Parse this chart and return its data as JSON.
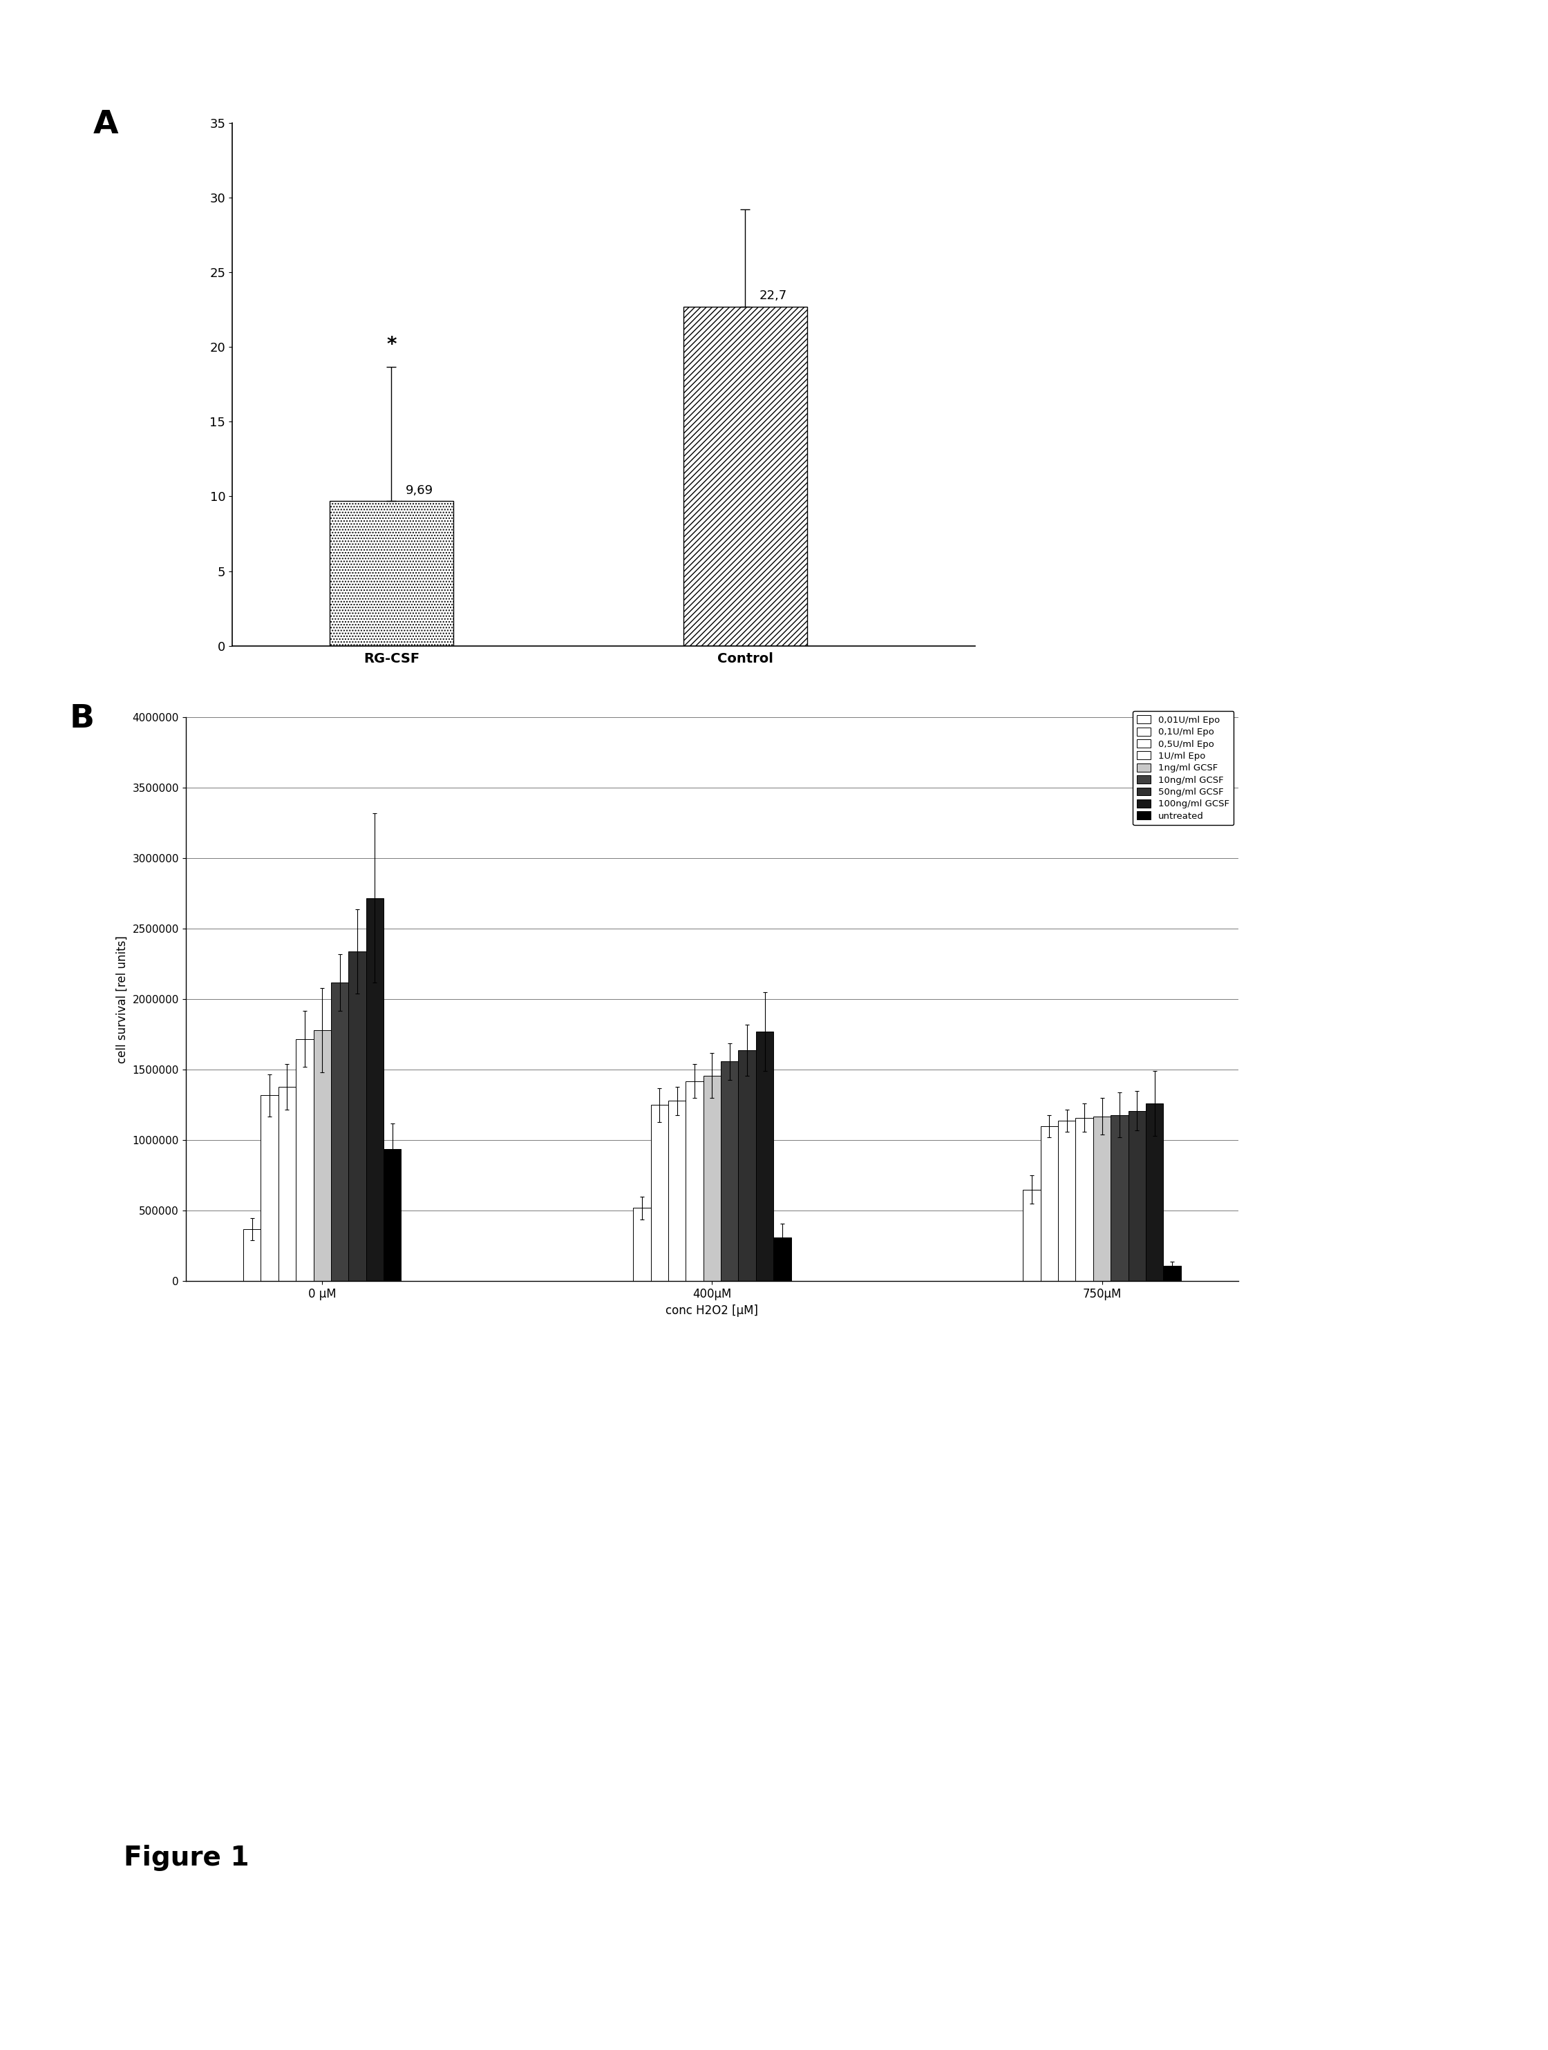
{
  "panel_a": {
    "categories": [
      "RG-CSF",
      "Control"
    ],
    "values": [
      9.69,
      22.7
    ],
    "errors_up": [
      9.0,
      6.5
    ],
    "errors_down": [
      0,
      0
    ],
    "hatches": [
      "....",
      "////"
    ],
    "ylim": [
      0,
      35
    ],
    "yticks": [
      0,
      5,
      10,
      15,
      20,
      25,
      30,
      35
    ],
    "value_labels": [
      "9,69",
      "22,7"
    ],
    "star_label": "*",
    "panel_label": "A",
    "bar_width": 0.35
  },
  "panel_b": {
    "x_labels_display": [
      "0 μM",
      "400μM",
      "750μM"
    ],
    "xlabel": "conc H2O2 [μM]",
    "ylabel": "cell survival [rel units]",
    "ylim": [
      0,
      4000000
    ],
    "yticks": [
      0,
      500000,
      1000000,
      1500000,
      2000000,
      2500000,
      3000000,
      3500000,
      4000000
    ],
    "panel_label": "B",
    "series": [
      {
        "label": "0,01U/ml Epo",
        "color": "white",
        "edgecolor": "black",
        "values": [
          370000,
          520000,
          650000
        ],
        "errors": [
          80000,
          80000,
          100000
        ]
      },
      {
        "label": "0,1U/ml Epo",
        "color": "white",
        "edgecolor": "black",
        "values": [
          1320000,
          1250000,
          1100000
        ],
        "errors": [
          150000,
          120000,
          80000
        ]
      },
      {
        "label": "0,5U/ml Epo",
        "color": "white",
        "edgecolor": "black",
        "values": [
          1380000,
          1280000,
          1140000
        ],
        "errors": [
          160000,
          100000,
          80000
        ]
      },
      {
        "label": "1U/ml Epo",
        "color": "white",
        "edgecolor": "black",
        "values": [
          1720000,
          1420000,
          1160000
        ],
        "errors": [
          200000,
          120000,
          100000
        ]
      },
      {
        "label": "1ng/ml GCSF",
        "color": "#c8c8c8",
        "edgecolor": "black",
        "values": [
          1780000,
          1460000,
          1170000
        ],
        "errors": [
          300000,
          160000,
          130000
        ]
      },
      {
        "label": "10ng/ml GCSF",
        "color": "#404040",
        "edgecolor": "black",
        "values": [
          2120000,
          1560000,
          1180000
        ],
        "errors": [
          200000,
          130000,
          160000
        ]
      },
      {
        "label": "50ng/ml GCSF",
        "color": "#303030",
        "edgecolor": "black",
        "values": [
          2340000,
          1640000,
          1210000
        ],
        "errors": [
          300000,
          180000,
          140000
        ]
      },
      {
        "label": "100ng/ml GCSF",
        "color": "#181818",
        "edgecolor": "black",
        "values": [
          2720000,
          1770000,
          1260000
        ],
        "errors": [
          600000,
          280000,
          230000
        ]
      },
      {
        "label": "untreated",
        "color": "#000000",
        "edgecolor": "black",
        "values": [
          940000,
          310000,
          110000
        ],
        "errors": [
          180000,
          100000,
          30000
        ]
      }
    ],
    "bar_width": 0.09,
    "group_centers": [
      1.0,
      3.0,
      5.0
    ]
  },
  "figure_label": "Figure 1",
  "background_color": "white"
}
